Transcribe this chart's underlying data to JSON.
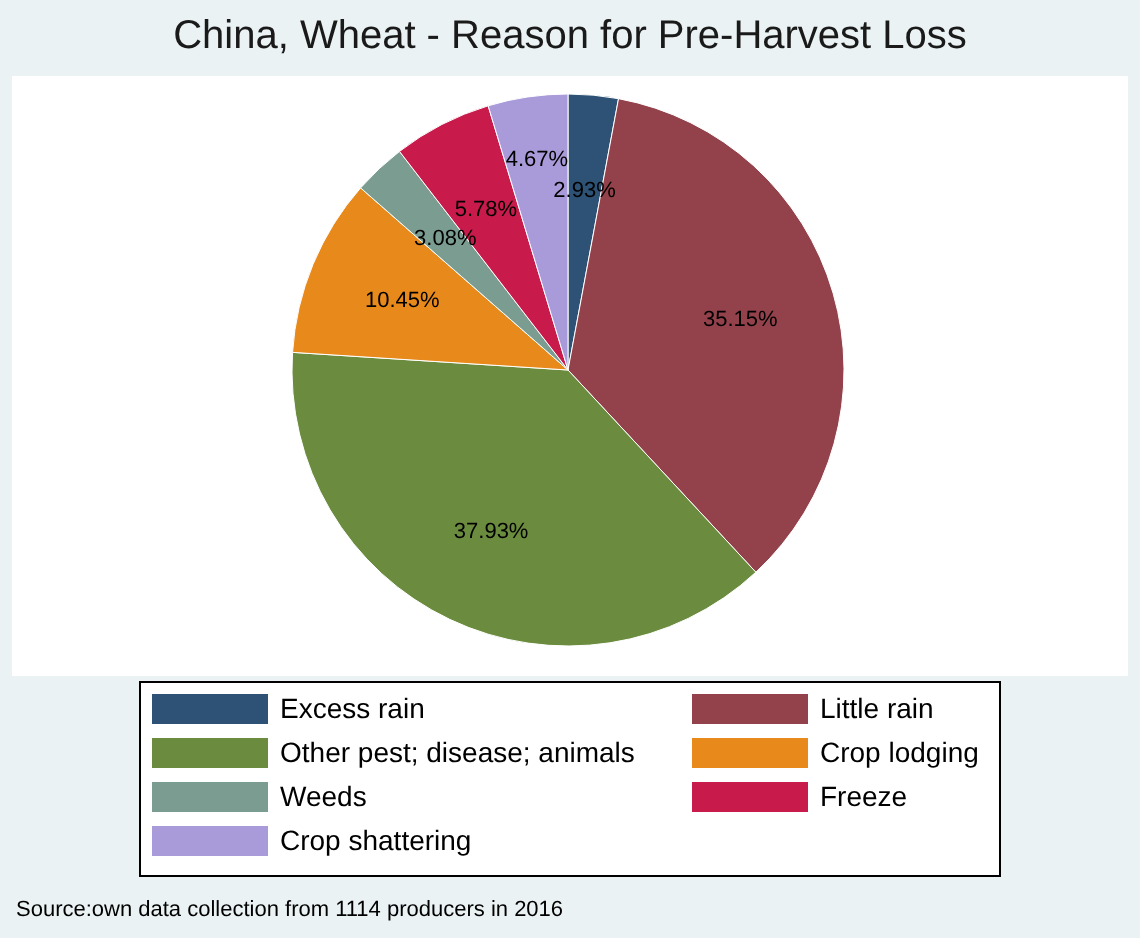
{
  "chart_data": {
    "type": "pie",
    "title": "China, Wheat - Reason for Pre-Harvest Loss",
    "categories": [
      "Excess rain",
      "Little rain",
      "Other pest; disease; animals",
      "Crop lodging",
      "Weeds",
      "Freeze",
      "Crop shattering"
    ],
    "values": [
      2.93,
      35.15,
      37.93,
      10.45,
      3.08,
      5.78,
      4.67
    ],
    "value_labels": [
      "2.93%",
      "35.15%",
      "37.93%",
      "10.45%",
      "3.08%",
      "5.78%",
      "4.67%"
    ],
    "colors": [
      "#2d5275",
      "#93424b",
      "#6b8c3e",
      "#e88a1b",
      "#7b9c90",
      "#c81a4b",
      "#a99bd9"
    ],
    "legend": "bottom",
    "annotations": [
      "Source:own data collection from 1114 producers in 2016"
    ]
  }
}
